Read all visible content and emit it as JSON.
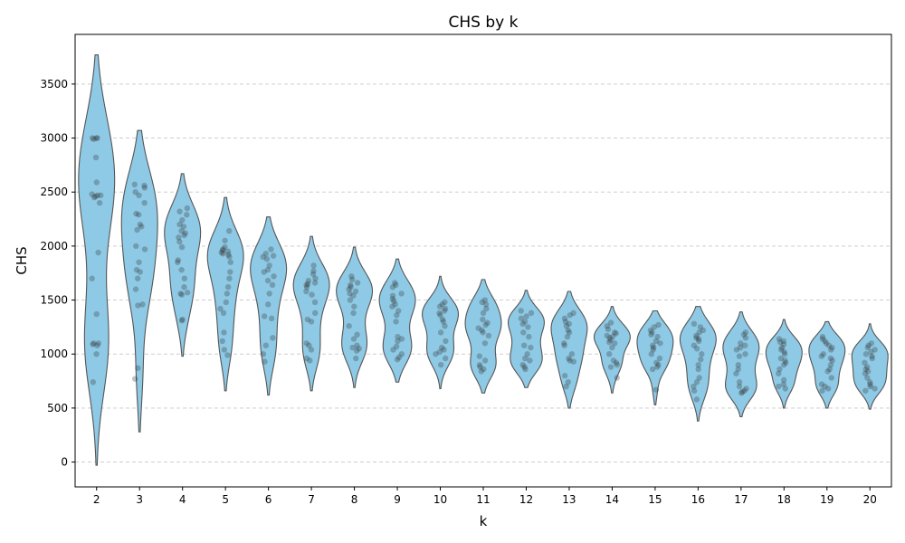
{
  "chart_data": {
    "type": "violin",
    "title": "CHS by k",
    "xlabel": "k",
    "ylabel": "CHS",
    "categories": [
      "2",
      "3",
      "4",
      "5",
      "6",
      "7",
      "8",
      "9",
      "10",
      "11",
      "12",
      "13",
      "14",
      "15",
      "16",
      "17",
      "18",
      "19",
      "20"
    ],
    "yticks": [
      "0",
      "500",
      "1000",
      "1500",
      "2000",
      "2500",
      "3000",
      "3500"
    ],
    "ylim": [
      -230,
      3960
    ],
    "grid": "y-dashed",
    "fill_color": "#8ecae6",
    "edge_color": "#555555",
    "point_color": "#333333",
    "series": [
      {
        "k": "2",
        "min": -30,
        "max": 3770,
        "points": [
          3000,
          3000,
          3000,
          2990,
          2820,
          2590,
          2480,
          2470,
          2470,
          2460,
          2450,
          2400,
          1940,
          1700,
          1370,
          1100,
          1100,
          1090,
          1080,
          1000,
          740
        ]
      },
      {
        "k": "3",
        "min": 280,
        "max": 3070,
        "points": [
          2570,
          2560,
          2540,
          2500,
          2470,
          2400,
          2300,
          2290,
          2200,
          2180,
          2150,
          2000,
          1970,
          1850,
          1780,
          1760,
          1700,
          1600,
          1460,
          1450,
          870,
          770
        ]
      },
      {
        "k": "4",
        "min": 980,
        "max": 2670,
        "points": [
          2350,
          2320,
          2290,
          2240,
          2200,
          2180,
          2140,
          2120,
          2100,
          2080,
          2040,
          1990,
          1870,
          1850,
          1780,
          1700,
          1620,
          1570,
          1560,
          1550,
          1320,
          1310
        ]
      },
      {
        "k": "5",
        "min": 660,
        "max": 2450,
        "points": [
          2140,
          2050,
          1990,
          1970,
          1960,
          1950,
          1940,
          1930,
          1920,
          1900,
          1850,
          1760,
          1700,
          1620,
          1560,
          1480,
          1420,
          1380,
          1200,
          1120,
          1040,
          990
        ]
      },
      {
        "k": "6",
        "min": 620,
        "max": 2270,
        "points": [
          1970,
          1930,
          1910,
          1900,
          1880,
          1820,
          1780,
          1760,
          1720,
          1680,
          1640,
          1560,
          1460,
          1350,
          1330,
          1150,
          1080,
          1000,
          930
        ]
      },
      {
        "k": "7",
        "min": 660,
        "max": 2090,
        "points": [
          1820,
          1770,
          1740,
          1700,
          1680,
          1660,
          1650,
          1640,
          1620,
          1580,
          1550,
          1480,
          1380,
          1320,
          1300,
          1100,
          1080,
          1040,
          960,
          940
        ]
      },
      {
        "k": "8",
        "min": 690,
        "max": 1990,
        "points": [
          1720,
          1690,
          1660,
          1640,
          1620,
          1600,
          1580,
          1560,
          1540,
          1500,
          1440,
          1380,
          1260,
          1180,
          1140,
          1080,
          1060,
          1050,
          1030,
          960
        ]
      },
      {
        "k": "9",
        "min": 740,
        "max": 1880,
        "points": [
          1660,
          1640,
          1620,
          1560,
          1540,
          1510,
          1490,
          1460,
          1440,
          1400,
          1360,
          1300,
          1160,
          1140,
          1120,
          1070,
          1040,
          1000,
          970,
          950
        ]
      },
      {
        "k": "10",
        "min": 680,
        "max": 1720,
        "points": [
          1480,
          1460,
          1440,
          1420,
          1400,
          1380,
          1360,
          1320,
          1300,
          1260,
          1200,
          1120,
          1060,
          1040,
          1020,
          1000,
          960,
          900
        ]
      },
      {
        "k": "11",
        "min": 640,
        "max": 1690,
        "points": [
          1500,
          1480,
          1460,
          1420,
          1380,
          1320,
          1290,
          1270,
          1240,
          1220,
          1200,
          1170,
          1100,
          980,
          940,
          900,
          880,
          860,
          840
        ]
      },
      {
        "k": "12",
        "min": 690,
        "max": 1590,
        "points": [
          1400,
          1380,
          1350,
          1330,
          1300,
          1280,
          1250,
          1200,
          1160,
          1080,
          1060,
          1000,
          960,
          940,
          900,
          880,
          860
        ]
      },
      {
        "k": "13",
        "min": 500,
        "max": 1580,
        "points": [
          1380,
          1360,
          1330,
          1300,
          1280,
          1260,
          1220,
          1200,
          1160,
          1100,
          1080,
          1000,
          960,
          940,
          930,
          800,
          740,
          700
        ]
      },
      {
        "k": "14",
        "min": 640,
        "max": 1440,
        "points": [
          1290,
          1260,
          1230,
          1200,
          1190,
          1170,
          1160,
          1150,
          1130,
          1110,
          1100,
          1060,
          1000,
          940,
          920,
          900,
          880,
          780
        ]
      },
      {
        "k": "15",
        "min": 530,
        "max": 1400,
        "points": [
          1270,
          1250,
          1220,
          1200,
          1180,
          1160,
          1120,
          1100,
          1080,
          1060,
          1040,
          1000,
          960,
          920,
          900,
          880,
          860,
          670
        ]
      },
      {
        "k": "16",
        "min": 380,
        "max": 1440,
        "points": [
          1280,
          1250,
          1220,
          1200,
          1170,
          1150,
          1140,
          1120,
          1080,
          1050,
          1000,
          950,
          900,
          860,
          780,
          740,
          700,
          660,
          580
        ]
      },
      {
        "k": "17",
        "min": 420,
        "max": 1390,
        "points": [
          1200,
          1180,
          1150,
          1100,
          1080,
          1060,
          1040,
          1000,
          980,
          900,
          860,
          820,
          740,
          700,
          680,
          660,
          650,
          640
        ]
      },
      {
        "k": "18",
        "min": 500,
        "max": 1320,
        "points": [
          1140,
          1120,
          1110,
          1090,
          1060,
          1040,
          1020,
          1000,
          960,
          940,
          920,
          900,
          860,
          820,
          760,
          720,
          700,
          680
        ]
      },
      {
        "k": "19",
        "min": 500,
        "max": 1300,
        "points": [
          1160,
          1140,
          1120,
          1100,
          1080,
          1060,
          1040,
          1000,
          980,
          960,
          940,
          900,
          860,
          840,
          780,
          720,
          700,
          680,
          660
        ]
      },
      {
        "k": "20",
        "min": 490,
        "max": 1280,
        "points": [
          1100,
          1080,
          1060,
          1040,
          1020,
          1000,
          980,
          960,
          920,
          880,
          860,
          840,
          820,
          780,
          740,
          720,
          700,
          680,
          660
        ]
      }
    ]
  }
}
